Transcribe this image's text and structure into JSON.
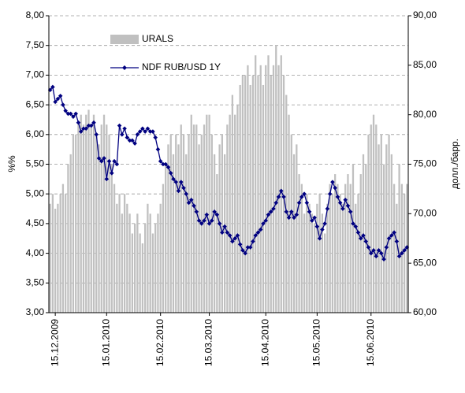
{
  "chart_data": {
    "type": "combo",
    "y_label": "%%",
    "y2_label": "долл./барр.",
    "categories": [
      null,
      null,
      "15.12.2009",
      null,
      null,
      null,
      null,
      null,
      null,
      null,
      null,
      null,
      null,
      null,
      null,
      null,
      null,
      null,
      null,
      null,
      null,
      null,
      "15.01.2010",
      null,
      null,
      null,
      null,
      null,
      null,
      null,
      null,
      null,
      null,
      null,
      null,
      null,
      null,
      null,
      null,
      null,
      null,
      null,
      null,
      "15.02.2010",
      null,
      null,
      null,
      null,
      null,
      null,
      null,
      null,
      null,
      null,
      null,
      null,
      null,
      null,
      null,
      null,
      null,
      null,
      "15.03.2010",
      null,
      null,
      null,
      null,
      null,
      null,
      null,
      null,
      null,
      null,
      null,
      null,
      null,
      null,
      null,
      null,
      null,
      null,
      null,
      null,
      null,
      "15.04.2010",
      null,
      null,
      null,
      null,
      null,
      null,
      null,
      null,
      null,
      null,
      null,
      null,
      null,
      null,
      null,
      null,
      null,
      null,
      null,
      "15.05.2010",
      null,
      null,
      null,
      null,
      null,
      null,
      null,
      null,
      null,
      null,
      null,
      null,
      null,
      null,
      null,
      null,
      null,
      null,
      null,
      null,
      "15.06.2010",
      null,
      null,
      null,
      null,
      null,
      null,
      null,
      null,
      null,
      null,
      null,
      null,
      null,
      null
    ],
    "series": [
      {
        "name": "URALS",
        "type": "bar",
        "axis": "y2",
        "color": "#c0c0c0",
        "values": [
          71,
          72,
          70.5,
          71,
          72,
          73,
          72,
          75,
          76,
          78,
          78,
          79,
          80,
          79,
          80,
          80.5,
          79,
          80,
          78,
          77,
          79,
          80,
          79,
          78,
          75,
          73,
          71,
          72,
          70,
          72,
          71,
          70,
          68,
          69,
          70,
          68,
          67,
          69,
          71,
          70,
          68,
          69,
          70,
          71,
          73,
          75,
          77,
          78,
          76,
          78,
          77,
          79,
          78,
          76,
          78,
          80,
          79,
          79,
          77,
          78,
          79,
          80,
          80,
          78,
          76,
          74,
          77,
          78,
          76,
          79,
          80,
          82,
          80,
          81,
          83,
          84,
          84,
          85,
          83,
          84,
          86,
          84,
          85,
          83,
          85,
          86,
          84,
          85,
          87,
          85,
          86,
          84,
          82,
          80,
          78,
          76,
          77,
          74,
          73,
          70,
          72,
          71,
          70,
          69,
          71,
          72,
          70,
          68,
          71,
          73,
          72,
          74,
          73,
          72,
          71,
          73,
          74,
          73,
          75,
          71,
          72,
          74,
          76,
          75,
          78,
          79,
          80,
          79,
          77,
          78,
          75,
          77,
          78,
          76,
          73,
          71,
          75,
          73,
          72,
          73
        ]
      },
      {
        "name": "NDF RUB/USD 1Y",
        "type": "line",
        "color": "#000080",
        "values": [
          6.75,
          6.8,
          6.55,
          6.6,
          6.65,
          6.5,
          6.4,
          6.35,
          6.35,
          6.3,
          6.35,
          6.2,
          6.05,
          6.1,
          6.1,
          6.15,
          6.15,
          6.2,
          6.0,
          5.6,
          5.55,
          5.6,
          5.25,
          5.55,
          5.35,
          5.55,
          5.5,
          6.15,
          6.0,
          6.1,
          5.95,
          5.9,
          5.9,
          5.85,
          6.0,
          6.05,
          6.1,
          6.05,
          6.1,
          6.05,
          6.05,
          5.95,
          5.75,
          5.55,
          5.5,
          5.5,
          5.45,
          5.35,
          5.25,
          5.2,
          5.05,
          5.2,
          5.1,
          5.0,
          4.85,
          4.9,
          4.8,
          4.7,
          4.55,
          4.5,
          4.55,
          4.65,
          4.5,
          4.55,
          4.7,
          4.65,
          4.5,
          4.35,
          4.45,
          4.35,
          4.3,
          4.2,
          4.25,
          4.3,
          4.15,
          4.05,
          4.0,
          4.1,
          4.1,
          4.2,
          4.3,
          4.35,
          4.4,
          4.5,
          4.55,
          4.65,
          4.7,
          4.75,
          4.85,
          4.95,
          5.05,
          4.95,
          4.7,
          4.6,
          4.7,
          4.6,
          4.65,
          4.85,
          4.95,
          5.0,
          4.85,
          4.7,
          4.55,
          4.6,
          4.45,
          4.25,
          4.4,
          4.5,
          4.75,
          5.0,
          5.2,
          5.1,
          4.95,
          4.85,
          4.75,
          4.9,
          4.8,
          4.7,
          4.5,
          4.45,
          4.35,
          4.25,
          4.3,
          4.2,
          4.1,
          4.0,
          4.05,
          3.95,
          4.05,
          4.0,
          3.9,
          4.1,
          4.25,
          4.3,
          4.35,
          4.2,
          3.95,
          4.0,
          4.05,
          4.1
        ]
      }
    ],
    "ylim": [
      3,
      8
    ],
    "yticks": [
      {
        "value": 3,
        "label": "3,00"
      },
      {
        "value": 3.5,
        "label": "3,50"
      },
      {
        "value": 4,
        "label": "4,00"
      },
      {
        "value": 4.5,
        "label": "4,50"
      },
      {
        "value": 5,
        "label": "5,00"
      },
      {
        "value": 5.5,
        "label": "5,50"
      },
      {
        "value": 6,
        "label": "6,00"
      },
      {
        "value": 6.5,
        "label": "6,50"
      },
      {
        "value": 7,
        "label": "7,00"
      },
      {
        "value": 7.5,
        "label": "7,50"
      },
      {
        "value": 8,
        "label": "8,00"
      }
    ],
    "y2lim": [
      60,
      90
    ],
    "y2ticks": [
      {
        "value": 60,
        "label": "60,00"
      },
      {
        "value": 65,
        "label": "65,00"
      },
      {
        "value": 70,
        "label": "70,00"
      },
      {
        "value": 75,
        "label": "75,00"
      },
      {
        "value": 80,
        "label": "80,00"
      },
      {
        "value": 85,
        "label": "85,00"
      },
      {
        "value": 90,
        "label": "90,00"
      }
    ],
    "grid": true
  }
}
